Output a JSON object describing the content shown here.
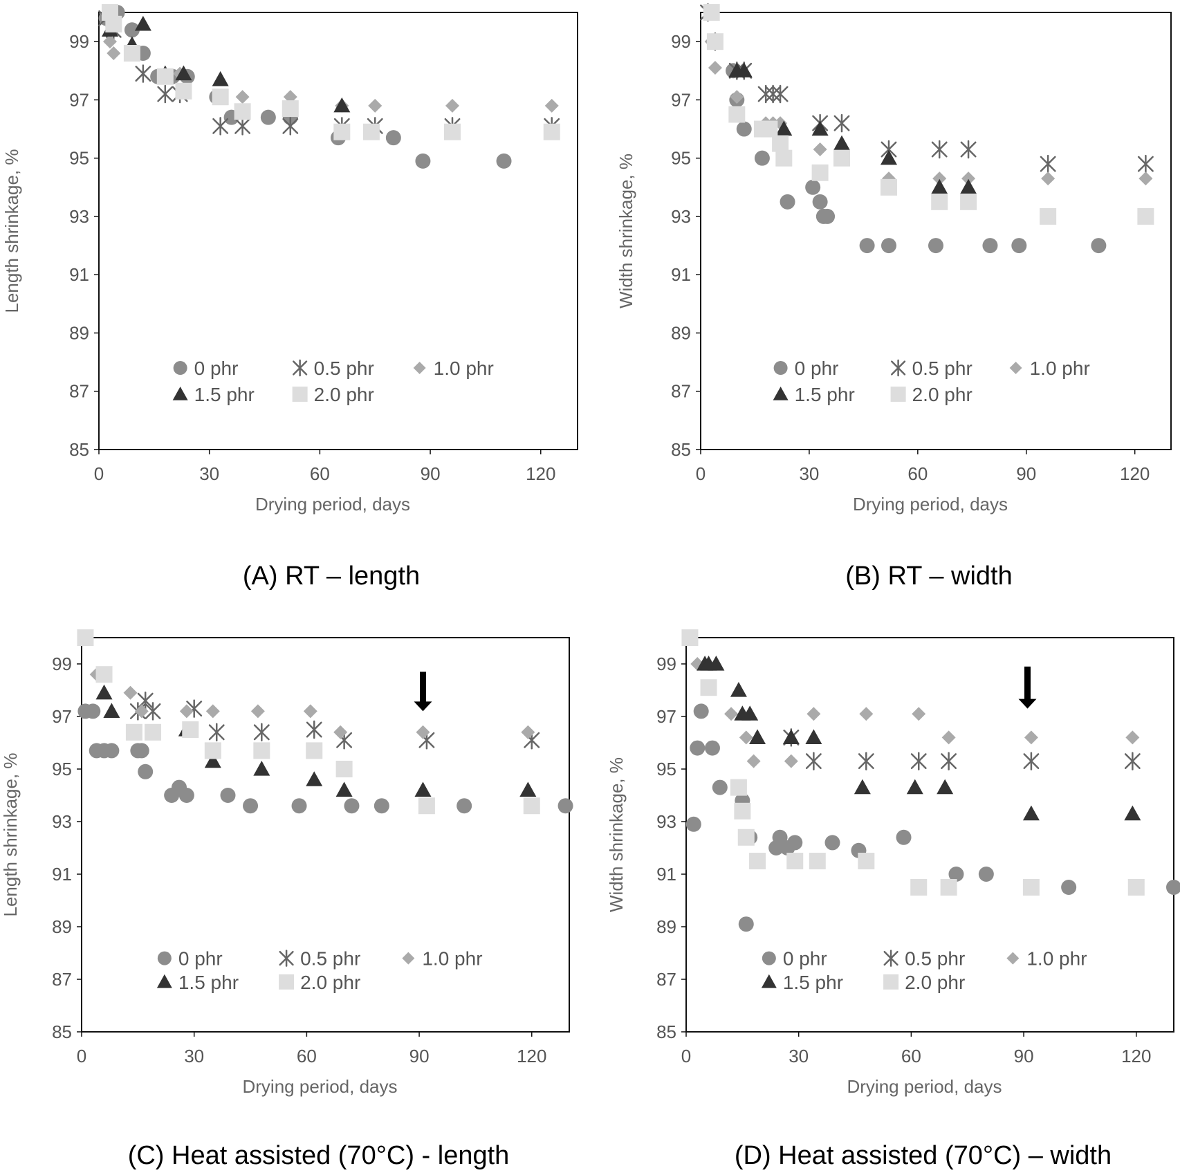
{
  "chart_data": [
    {
      "type": "scatter",
      "title": "",
      "caption": "(A) RT – length",
      "xlabel": "Drying period, days",
      "ylabel": "Length shrinkage, %",
      "xlim": [
        0,
        130
      ],
      "ylim": [
        85,
        100
      ],
      "xticks": [
        0,
        30,
        60,
        90,
        120
      ],
      "yticks": [
        85,
        87,
        89,
        91,
        93,
        95,
        97,
        99
      ],
      "legend": {
        "placement": "lower-center",
        "columns": 3
      },
      "series": [
        {
          "name": "0 phr",
          "marker": "circle",
          "color": "#8c8c8c",
          "x": [
            2,
            5,
            9,
            12,
            16,
            20,
            24,
            32,
            36,
            46,
            52,
            65,
            80,
            88,
            110
          ],
          "y": [
            99.8,
            100,
            99.4,
            98.6,
            97.8,
            97.8,
            97.8,
            97.1,
            96.4,
            96.4,
            96.4,
            95.7,
            95.7,
            94.9,
            94.9
          ]
        },
        {
          "name": "0.5 phr",
          "marker": "asterisk",
          "color": "#666666",
          "x": [
            2,
            4,
            12,
            18,
            22,
            33,
            39,
            52,
            66,
            75,
            96,
            123
          ],
          "y": [
            99.8,
            99.4,
            97.9,
            97.2,
            97.2,
            96.1,
            96.1,
            96.1,
            96.1,
            96.1,
            96.1,
            96.1
          ]
        },
        {
          "name": "1.0 phr",
          "marker": "diamond",
          "color": "#aaaaaa",
          "x": [
            3,
            4,
            18,
            22,
            33,
            39,
            52,
            66,
            75,
            96,
            123
          ],
          "y": [
            99.0,
            98.6,
            97.9,
            97.9,
            97.1,
            97.1,
            97.1,
            96.8,
            96.8,
            96.8,
            96.8
          ]
        },
        {
          "name": "1.5 phr",
          "marker": "triangle",
          "color": "#333333",
          "x": [
            3,
            9,
            12,
            18,
            23,
            33,
            66
          ],
          "y": [
            99.4,
            98.9,
            99.6,
            97.9,
            97.9,
            97.7,
            96.8
          ]
        },
        {
          "name": "2.0 phr",
          "marker": "square",
          "color": "#dddddd",
          "x": [
            3,
            4,
            9,
            18,
            23,
            33,
            39,
            52,
            66,
            74,
            96,
            123
          ],
          "y": [
            100,
            99.6,
            98.6,
            97.8,
            97.3,
            97.1,
            96.6,
            96.7,
            95.9,
            95.9,
            95.9,
            95.9
          ]
        }
      ]
    },
    {
      "type": "scatter",
      "title": "",
      "caption": "(B) RT – width",
      "xlabel": "Drying period, days",
      "ylabel": "Width shrinkage, %",
      "xlim": [
        0,
        130
      ],
      "ylim": [
        85,
        100
      ],
      "xticks": [
        0,
        30,
        60,
        90,
        120
      ],
      "yticks": [
        85,
        87,
        89,
        91,
        93,
        95,
        97,
        99
      ],
      "legend": {
        "placement": "lower-center",
        "columns": 3
      },
      "series": [
        {
          "name": "0 phr",
          "marker": "circle",
          "color": "#8c8c8c",
          "x": [
            4,
            9,
            10,
            12,
            17,
            24,
            31,
            33,
            34,
            35,
            46,
            52,
            65,
            80,
            88,
            110
          ],
          "y": [
            99.0,
            98.0,
            97.0,
            96.0,
            95.0,
            93.5,
            94.0,
            93.5,
            93.0,
            93.0,
            92.0,
            92.0,
            92.0,
            92.0,
            92.0,
            92.0
          ]
        },
        {
          "name": "0.5 phr",
          "marker": "asterisk",
          "color": "#666666",
          "x": [
            2,
            4,
            10,
            12,
            18,
            20,
            22,
            33,
            39,
            52,
            66,
            74,
            96,
            123
          ],
          "y": [
            100,
            99.0,
            98.0,
            98.0,
            97.2,
            97.2,
            97.2,
            96.2,
            96.2,
            95.3,
            95.3,
            95.3,
            94.8,
            94.8
          ]
        },
        {
          "name": "1.0 phr",
          "marker": "diamond",
          "color": "#aaaaaa",
          "x": [
            3,
            4,
            10,
            18,
            20,
            22,
            33,
            39,
            52,
            66,
            74,
            96,
            123
          ],
          "y": [
            99.0,
            98.1,
            97.1,
            96.2,
            96.2,
            96.2,
            95.3,
            95.3,
            94.3,
            94.3,
            94.3,
            94.3,
            94.3
          ]
        },
        {
          "name": "1.5 phr",
          "marker": "triangle",
          "color": "#333333",
          "x": [
            10,
            12,
            23,
            33,
            39,
            52,
            66,
            74
          ],
          "y": [
            98.0,
            98.0,
            96.0,
            96.0,
            95.5,
            95.0,
            94.0,
            94.0
          ]
        },
        {
          "name": "2.0 phr",
          "marker": "square",
          "color": "#dddddd",
          "x": [
            3,
            4,
            10,
            17,
            19,
            22,
            23,
            33,
            39,
            52,
            66,
            74,
            96,
            123
          ],
          "y": [
            100,
            99.0,
            96.5,
            96.0,
            96.0,
            95.5,
            95.0,
            94.5,
            95.0,
            94.0,
            93.5,
            93.5,
            93.0,
            93.0
          ]
        }
      ]
    },
    {
      "type": "scatter",
      "title": "",
      "caption": "(C) Heat assisted (70°C) - length",
      "xlabel": "Drying period, days",
      "ylabel": "Length shrinkage, %",
      "xlim": [
        0,
        130
      ],
      "ylim": [
        85,
        100
      ],
      "xticks": [
        0,
        30,
        60,
        90,
        120
      ],
      "yticks": [
        85,
        87,
        89,
        91,
        93,
        95,
        97,
        99
      ],
      "annotation": {
        "type": "down-arrow",
        "x": 91,
        "y_from": 98.7,
        "y_to": 97.2
      },
      "legend": {
        "placement": "lower-center",
        "columns": 3
      },
      "series": [
        {
          "name": "0 phr",
          "marker": "circle",
          "color": "#8c8c8c",
          "x": [
            1,
            3,
            4,
            6,
            8,
            15,
            16,
            17,
            24,
            26,
            28,
            39,
            45,
            58,
            72,
            80,
            102,
            129
          ],
          "y": [
            97.2,
            97.2,
            95.7,
            95.7,
            95.7,
            95.7,
            95.7,
            94.9,
            94.0,
            94.3,
            94.0,
            94.0,
            93.6,
            93.6,
            93.6,
            93.6,
            93.6,
            93.6
          ]
        },
        {
          "name": "0.5 phr",
          "marker": "asterisk",
          "color": "#666666",
          "x": [
            15,
            17,
            19,
            30,
            36,
            48,
            62,
            70,
            92,
            120
          ],
          "y": [
            97.2,
            97.6,
            97.2,
            97.3,
            96.4,
            96.4,
            96.5,
            96.1,
            96.1,
            96.1
          ]
        },
        {
          "name": "1.0 phr",
          "marker": "diamond",
          "color": "#aaaaaa",
          "x": [
            4,
            13,
            16,
            28,
            35,
            47,
            61,
            69,
            91,
            119
          ],
          "y": [
            98.6,
            97.9,
            97.2,
            97.2,
            97.2,
            97.2,
            97.2,
            96.4,
            96.4,
            96.4
          ]
        },
        {
          "name": "1.5 phr",
          "marker": "triangle",
          "color": "#333333",
          "x": [
            6,
            8,
            28,
            35,
            48,
            62,
            70,
            91,
            119
          ],
          "y": [
            97.9,
            97.2,
            96.5,
            95.3,
            95.0,
            94.6,
            94.2,
            94.2,
            94.2
          ]
        },
        {
          "name": "2.0 phr",
          "marker": "square",
          "color": "#dddddd",
          "x": [
            1,
            6,
            14,
            19,
            29,
            35,
            48,
            62,
            70,
            92,
            120
          ],
          "y": [
            100,
            98.6,
            96.4,
            96.4,
            96.5,
            95.7,
            95.7,
            95.7,
            95.0,
            93.6,
            93.6
          ]
        }
      ]
    },
    {
      "type": "scatter",
      "title": "",
      "caption": "(D) Heat assisted (70°C) – width",
      "xlabel": "Drying period, days",
      "ylabel": "Width shrinkage, %",
      "xlim": [
        0,
        130
      ],
      "ylim": [
        85,
        100
      ],
      "xticks": [
        0,
        30,
        60,
        90,
        120
      ],
      "yticks": [
        85,
        87,
        89,
        91,
        93,
        95,
        97,
        99
      ],
      "annotation": {
        "type": "down-arrow",
        "x": 91,
        "y_from": 98.9,
        "y_to": 97.3
      },
      "legend": {
        "placement": "lower-center",
        "columns": 3
      },
      "series": [
        {
          "name": "0 phr",
          "marker": "circle",
          "color": "#8c8c8c",
          "x": [
            2,
            3,
            4,
            7,
            9,
            15,
            16,
            17,
            24,
            25,
            27,
            29,
            39,
            46,
            58,
            72,
            80,
            102,
            130
          ],
          "y": [
            92.9,
            95.8,
            97.2,
            95.8,
            94.3,
            93.8,
            89.1,
            92.4,
            92.0,
            92.4,
            92.0,
            92.2,
            92.2,
            91.9,
            92.4,
            91.0,
            91.0,
            90.5,
            90.5
          ]
        },
        {
          "name": "0.5 phr",
          "marker": "asterisk",
          "color": "#666666",
          "x": [
            28,
            34,
            48,
            62,
            70,
            92,
            119
          ],
          "y": [
            96.2,
            95.3,
            95.3,
            95.3,
            95.3,
            95.3,
            95.3
          ]
        },
        {
          "name": "1.0 phr",
          "marker": "diamond",
          "color": "#aaaaaa",
          "x": [
            3,
            12,
            16,
            18,
            28,
            34,
            48,
            62,
            70,
            92,
            119
          ],
          "y": [
            99.0,
            97.1,
            96.2,
            95.3,
            95.3,
            97.1,
            97.1,
            97.1,
            96.2,
            96.2,
            96.2
          ]
        },
        {
          "name": "1.5 phr",
          "marker": "triangle",
          "color": "#333333",
          "x": [
            5,
            6,
            8,
            14,
            15,
            17,
            19,
            28,
            34,
            47,
            61,
            69,
            92,
            119
          ],
          "y": [
            99.0,
            99.0,
            99.0,
            98.0,
            97.1,
            97.1,
            96.2,
            96.2,
            96.2,
            94.3,
            94.3,
            94.3,
            93.3,
            93.3
          ]
        },
        {
          "name": "2.0 phr",
          "marker": "square",
          "color": "#dddddd",
          "x": [
            1,
            6,
            14,
            15,
            16,
            19,
            29,
            35,
            48,
            62,
            70,
            92,
            120
          ],
          "y": [
            100,
            98.1,
            94.3,
            93.4,
            92.4,
            91.5,
            91.5,
            91.5,
            91.5,
            90.5,
            90.5,
            90.5,
            90.5
          ]
        }
      ]
    }
  ]
}
